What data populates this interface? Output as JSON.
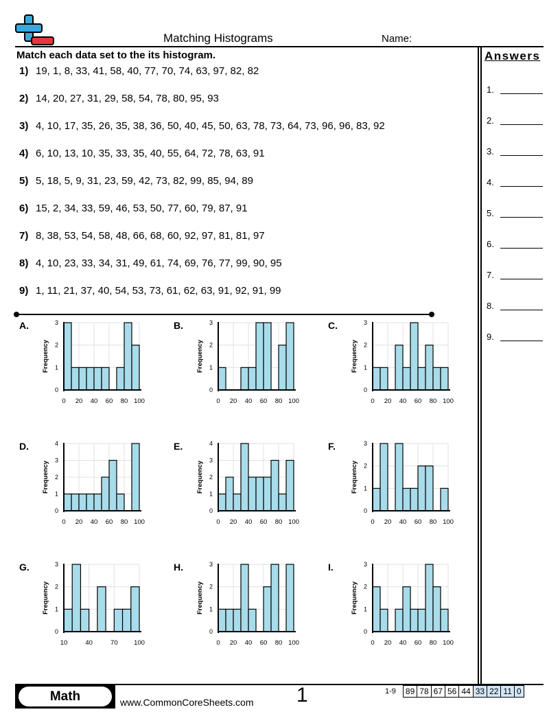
{
  "header": {
    "title": "Matching Histograms",
    "name_label": "Name:"
  },
  "instructions": "Match each data set to the its histogram.",
  "questions": [
    {
      "num": "1)",
      "data": "19, 1, 8, 33, 41, 58, 40, 77, 70, 74, 63, 97, 82, 82"
    },
    {
      "num": "2)",
      "data": "14, 20, 27, 31, 29, 58, 54, 78, 80, 95, 93"
    },
    {
      "num": "3)",
      "data": "4, 10, 17, 35, 26, 35, 38, 36, 50, 40, 45, 50, 63, 78, 73, 64, 73, 96, 96, 83, 92"
    },
    {
      "num": "4)",
      "data": "6, 10, 13, 10, 35, 33, 35, 40, 55, 64, 72, 78, 63, 91"
    },
    {
      "num": "5)",
      "data": "5, 18, 5, 9, 31, 23, 59, 42, 73, 82, 99, 85, 94, 89"
    },
    {
      "num": "6)",
      "data": "15, 2, 34, 33, 59, 46, 53, 50, 77, 60, 79, 87, 91"
    },
    {
      "num": "7)",
      "data": "8, 38, 53, 54, 58, 48, 66, 68, 60, 92, 97, 81, 81, 97"
    },
    {
      "num": "8)",
      "data": "4, 10, 23, 33, 34, 31, 49, 61, 74, 69, 76, 77, 99, 90, 95"
    },
    {
      "num": "9)",
      "data": "1, 11, 21, 37, 40, 54, 53, 73, 61, 62, 63, 91, 92, 91, 99"
    }
  ],
  "answers": {
    "heading": "Answers",
    "items": [
      "1.",
      "2.",
      "3.",
      "4.",
      "5.",
      "6.",
      "7.",
      "8.",
      "9."
    ]
  },
  "chart_data": [
    {
      "type": "bar",
      "label": "A.",
      "ylabel": "Frequency",
      "xlim": [
        0,
        100
      ],
      "ylim": [
        0,
        3
      ],
      "xticks": [
        "0",
        "20",
        "40",
        "60",
        "80",
        "100"
      ],
      "yticks": [
        "0",
        "1",
        "2",
        "3"
      ],
      "values": [
        3,
        1,
        1,
        1,
        1,
        1,
        0,
        1,
        3,
        2
      ]
    },
    {
      "type": "bar",
      "label": "B.",
      "ylabel": "Frequency",
      "xlim": [
        0,
        100
      ],
      "ylim": [
        0,
        3
      ],
      "xticks": [
        "0",
        "20",
        "40",
        "60",
        "80",
        "100"
      ],
      "yticks": [
        "0",
        "1",
        "2",
        "3"
      ],
      "values": [
        1,
        0,
        0,
        1,
        1,
        3,
        3,
        0,
        2,
        3
      ]
    },
    {
      "type": "bar",
      "label": "C.",
      "ylabel": "Frequency",
      "xlim": [
        0,
        100
      ],
      "ylim": [
        0,
        3
      ],
      "xticks": [
        "0",
        "20",
        "40",
        "60",
        "80",
        "100"
      ],
      "yticks": [
        "0",
        "1",
        "2",
        "3"
      ],
      "values": [
        1,
        1,
        0,
        2,
        1,
        3,
        1,
        2,
        1,
        1
      ]
    },
    {
      "type": "bar",
      "label": "D.",
      "ylabel": "Frequency",
      "xlim": [
        0,
        100
      ],
      "ylim": [
        0,
        4
      ],
      "xticks": [
        "0",
        "20",
        "40",
        "60",
        "80",
        "100"
      ],
      "yticks": [
        "0",
        "1",
        "2",
        "3",
        "4"
      ],
      "values": [
        1,
        1,
        1,
        1,
        1,
        2,
        3,
        1,
        0,
        4
      ]
    },
    {
      "type": "bar",
      "label": "E.",
      "ylabel": "Frequency",
      "xlim": [
        0,
        100
      ],
      "ylim": [
        0,
        4
      ],
      "xticks": [
        "0",
        "20",
        "40",
        "60",
        "80",
        "100"
      ],
      "yticks": [
        "0",
        "1",
        "2",
        "3",
        "4"
      ],
      "values": [
        1,
        2,
        1,
        4,
        2,
        2,
        2,
        3,
        1,
        3
      ]
    },
    {
      "type": "bar",
      "label": "F.",
      "ylabel": "Frequency",
      "xlim": [
        0,
        100
      ],
      "ylim": [
        0,
        3
      ],
      "xticks": [
        "0",
        "20",
        "40",
        "60",
        "80",
        "100"
      ],
      "yticks": [
        "0",
        "1",
        "2",
        "3"
      ],
      "values": [
        1,
        3,
        0,
        3,
        1,
        1,
        2,
        2,
        0,
        1
      ]
    },
    {
      "type": "bar",
      "label": "G.",
      "ylabel": "Frequency",
      "xlim": [
        10,
        100
      ],
      "ylim": [
        0,
        3
      ],
      "xticks": [
        "10",
        "40",
        "70",
        "100"
      ],
      "yticks": [
        "0",
        "1",
        "2",
        "3"
      ],
      "values": [
        1,
        3,
        1,
        0,
        2,
        0,
        1,
        1,
        2
      ]
    },
    {
      "type": "bar",
      "label": "H.",
      "ylabel": "Frequency",
      "xlim": [
        0,
        100
      ],
      "ylim": [
        0,
        3
      ],
      "xticks": [
        "0",
        "20",
        "40",
        "60",
        "80",
        "100"
      ],
      "yticks": [
        "0",
        "1",
        "2",
        "3"
      ],
      "values": [
        1,
        1,
        1,
        3,
        1,
        0,
        2,
        3,
        0,
        3
      ]
    },
    {
      "type": "bar",
      "label": "I.",
      "ylabel": "Frequency",
      "xlim": [
        0,
        100
      ],
      "ylim": [
        0,
        3
      ],
      "xticks": [
        "0",
        "20",
        "40",
        "60",
        "80",
        "100"
      ],
      "yticks": [
        "0",
        "1",
        "2",
        "3"
      ],
      "values": [
        2,
        1,
        0,
        1,
        2,
        1,
        1,
        3,
        2,
        1
      ]
    }
  ],
  "colors": {
    "bar_fill": "#a8dcea",
    "grid": "#e0e0e0",
    "logo_blue": "#3aa8dc",
    "logo_red": "#e8363a",
    "score_highlight": "#d2e6f8"
  },
  "footer": {
    "subject": "Math",
    "url": "www.CommonCoreSheets.com",
    "page": "1",
    "score_label": "1-9",
    "scores": [
      "89",
      "78",
      "67",
      "56",
      "44",
      "33",
      "22",
      "11",
      "0"
    ]
  }
}
